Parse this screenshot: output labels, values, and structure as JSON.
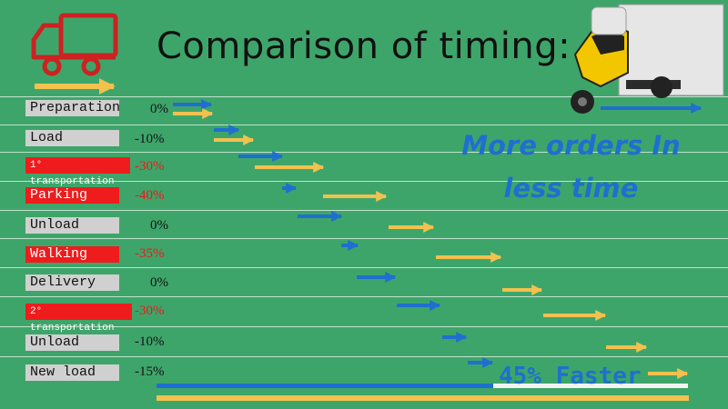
{
  "title": "Comparison of timing:",
  "slogan": {
    "line1": "More orders In",
    "line2": "less time"
  },
  "faster_label": "45% Faster",
  "colors": {
    "background": "#3ea56a",
    "blue": "#1e6fd0",
    "yellow": "#f2c14e",
    "red": "#ee1c1c",
    "gray": "#d0d0d0",
    "truck_icon": "#cc2222"
  },
  "icons": {
    "truck": "delivery-truck-icon",
    "vehicle": "electric-cargo-trike-image"
  },
  "steps": [
    {
      "name": "Preparation",
      "value": "0%"
    },
    {
      "name": "Load",
      "value": "-10%"
    },
    {
      "name": "1° transportation",
      "value": "-30%"
    },
    {
      "name": "Parking",
      "value": "-40%"
    },
    {
      "name": "Unload",
      "value": "0%"
    },
    {
      "name": "Walking",
      "value": "-35%"
    },
    {
      "name": "Delivery",
      "value": "0%"
    },
    {
      "name": "2° transportation",
      "value": "-30%"
    },
    {
      "name": "Unload",
      "value": "-10%"
    },
    {
      "name": "New load",
      "value": "-15%"
    }
  ]
}
